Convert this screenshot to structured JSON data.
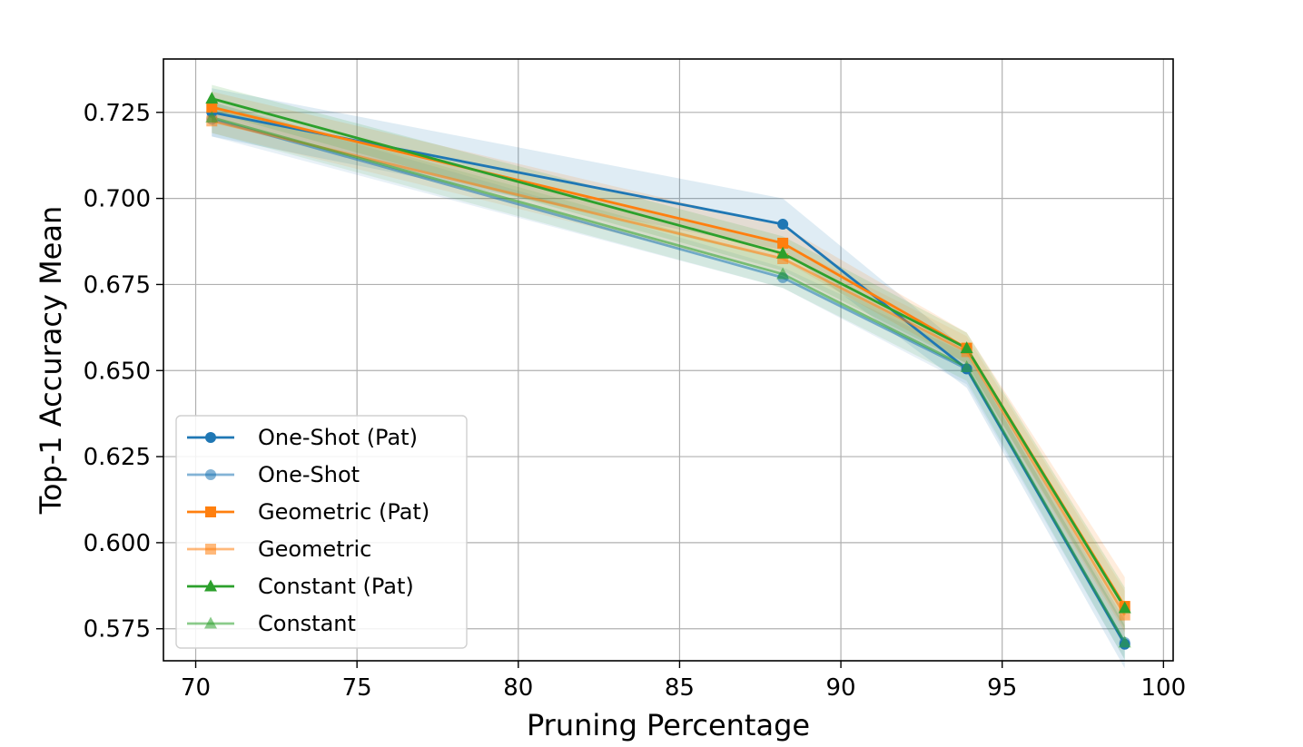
{
  "chart_data": {
    "type": "line",
    "title": "",
    "xlabel": "Pruning Percentage",
    "ylabel": "Top-1 Accuracy Mean",
    "xlim": [
      69,
      100.3
    ],
    "ylim": [
      0.5657,
      0.7405
    ],
    "xticks": [
      70,
      75,
      80,
      85,
      90,
      95,
      100
    ],
    "yticks": [
      0.575,
      0.6,
      0.625,
      0.65,
      0.675,
      0.7,
      0.725
    ],
    "xtick_labels": [
      "70",
      "75",
      "80",
      "85",
      "90",
      "95",
      "100"
    ],
    "ytick_labels": [
      "0.575",
      "0.600",
      "0.625",
      "0.650",
      "0.675",
      "0.700",
      "0.725"
    ],
    "grid": true,
    "legend_position": "lower-left",
    "x": [
      70.5,
      88.2,
      93.9,
      98.8
    ],
    "series": [
      {
        "name": "One-Shot (Pat)",
        "color": "#1f77b4",
        "alpha": 1.0,
        "marker": "circle",
        "values": [
          0.725,
          0.6925,
          0.6505,
          0.5705
        ],
        "lower": [
          0.718,
          0.685,
          0.645,
          0.5635
        ],
        "upper": [
          0.732,
          0.7,
          0.656,
          0.5775
        ]
      },
      {
        "name": "One-Shot",
        "color": "#1f77b4",
        "alpha": 0.55,
        "marker": "circle",
        "values": [
          0.723,
          0.677,
          0.6505,
          0.571
        ],
        "lower": [
          0.718,
          0.674,
          0.646,
          0.566
        ],
        "upper": [
          0.728,
          0.68,
          0.655,
          0.576
        ]
      },
      {
        "name": "Geometric (Pat)",
        "color": "#ff7f0e",
        "alpha": 1.0,
        "marker": "square",
        "values": [
          0.7265,
          0.687,
          0.6565,
          0.5815
        ],
        "lower": [
          0.722,
          0.682,
          0.652,
          0.574
        ],
        "upper": [
          0.731,
          0.692,
          0.661,
          0.59
        ]
      },
      {
        "name": "Geometric",
        "color": "#ff7f0e",
        "alpha": 0.55,
        "marker": "square",
        "values": [
          0.7225,
          0.6825,
          0.6555,
          0.579
        ],
        "lower": [
          0.719,
          0.678,
          0.651,
          0.572
        ],
        "upper": [
          0.727,
          0.687,
          0.66,
          0.586
        ]
      },
      {
        "name": "Constant (Pat)",
        "color": "#2ca02c",
        "alpha": 1.0,
        "marker": "triangle",
        "values": [
          0.729,
          0.684,
          0.6565,
          0.581
        ],
        "lower": [
          0.725,
          0.679,
          0.652,
          0.575
        ],
        "upper": [
          0.733,
          0.689,
          0.661,
          0.587
        ]
      },
      {
        "name": "Constant",
        "color": "#2ca02c",
        "alpha": 0.55,
        "marker": "triangle",
        "values": [
          0.7235,
          0.678,
          0.651,
          0.571
        ],
        "lower": [
          0.719,
          0.674,
          0.647,
          0.566
        ],
        "upper": [
          0.728,
          0.682,
          0.655,
          0.576
        ]
      }
    ]
  }
}
